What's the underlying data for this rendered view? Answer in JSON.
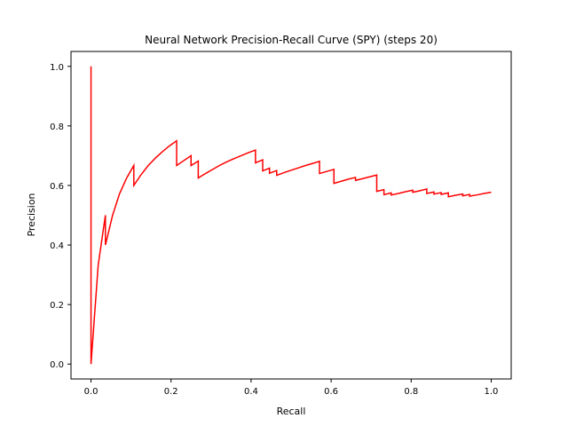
{
  "chart_data": {
    "type": "line",
    "title": "Neural Network Precision-Recall Curve (SPY) (steps 20)",
    "xlabel": "Recall",
    "ylabel": "Precision",
    "xlim": [
      -0.05,
      1.05
    ],
    "ylim": [
      -0.05,
      1.05
    ],
    "xticks": [
      "0.0",
      "0.2",
      "0.4",
      "0.6",
      "0.8",
      "1.0"
    ],
    "yticks": [
      "0.0",
      "0.2",
      "0.4",
      "0.6",
      "0.8",
      "1.0"
    ],
    "grid": false,
    "legend": "none",
    "line_color": "#ff0000",
    "series": [
      {
        "points": [
          [
            0.0,
            1.0
          ],
          [
            0.0,
            0.0
          ],
          [
            0.018,
            0.333
          ],
          [
            0.036,
            0.5
          ],
          [
            0.036,
            0.4
          ],
          [
            0.054,
            0.5
          ],
          [
            0.071,
            0.571
          ],
          [
            0.089,
            0.625
          ],
          [
            0.107,
            0.667
          ],
          [
            0.107,
            0.6
          ],
          [
            0.125,
            0.636
          ],
          [
            0.143,
            0.667
          ],
          [
            0.161,
            0.692
          ],
          [
            0.179,
            0.714
          ],
          [
            0.196,
            0.733
          ],
          [
            0.214,
            0.75
          ],
          [
            0.214,
            0.667
          ],
          [
            0.25,
            0.7
          ],
          [
            0.25,
            0.667
          ],
          [
            0.268,
            0.682
          ],
          [
            0.268,
            0.625
          ],
          [
            0.286,
            0.64
          ],
          [
            0.304,
            0.654
          ],
          [
            0.321,
            0.667
          ],
          [
            0.339,
            0.679
          ],
          [
            0.357,
            0.69
          ],
          [
            0.375,
            0.7
          ],
          [
            0.393,
            0.71
          ],
          [
            0.411,
            0.719
          ],
          [
            0.411,
            0.676
          ],
          [
            0.429,
            0.686
          ],
          [
            0.429,
            0.649
          ],
          [
            0.446,
            0.658
          ],
          [
            0.446,
            0.641
          ],
          [
            0.464,
            0.65
          ],
          [
            0.464,
            0.634
          ],
          [
            0.482,
            0.643
          ],
          [
            0.5,
            0.651
          ],
          [
            0.518,
            0.659
          ],
          [
            0.536,
            0.667
          ],
          [
            0.554,
            0.674
          ],
          [
            0.571,
            0.681
          ],
          [
            0.571,
            0.64
          ],
          [
            0.589,
            0.647
          ],
          [
            0.607,
            0.654
          ],
          [
            0.607,
            0.607
          ],
          [
            0.625,
            0.614
          ],
          [
            0.643,
            0.621
          ],
          [
            0.661,
            0.627
          ],
          [
            0.661,
            0.617
          ],
          [
            0.679,
            0.623
          ],
          [
            0.696,
            0.629
          ],
          [
            0.714,
            0.635
          ],
          [
            0.714,
            0.58
          ],
          [
            0.732,
            0.586
          ],
          [
            0.732,
            0.569
          ],
          [
            0.75,
            0.575
          ],
          [
            0.75,
            0.568
          ],
          [
            0.768,
            0.573
          ],
          [
            0.786,
            0.579
          ],
          [
            0.804,
            0.584
          ],
          [
            0.804,
            0.577
          ],
          [
            0.821,
            0.582
          ],
          [
            0.839,
            0.588
          ],
          [
            0.839,
            0.573
          ],
          [
            0.857,
            0.578
          ],
          [
            0.857,
            0.571
          ],
          [
            0.875,
            0.576
          ],
          [
            0.875,
            0.57
          ],
          [
            0.893,
            0.575
          ],
          [
            0.893,
            0.562
          ],
          [
            0.911,
            0.567
          ],
          [
            0.929,
            0.571
          ],
          [
            0.929,
            0.565
          ],
          [
            0.946,
            0.57
          ],
          [
            0.946,
            0.564
          ],
          [
            0.964,
            0.568
          ],
          [
            0.982,
            0.573
          ],
          [
            1.0,
            0.577
          ]
        ]
      }
    ]
  }
}
